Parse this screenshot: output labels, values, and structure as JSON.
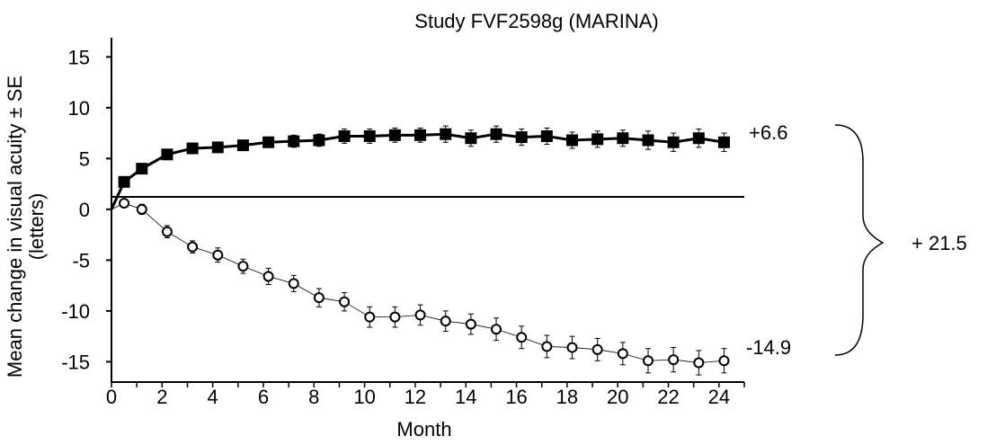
{
  "chart_data": {
    "type": "line",
    "title": "Study FVF2598g (MARINA)",
    "xlabel": "Month",
    "ylabel_line1": "Mean change in visual acuity ± SE",
    "ylabel_line2": "(letters)",
    "xlim": [
      0,
      25
    ],
    "ylim": [
      -17,
      16
    ],
    "xticks": [
      0,
      2,
      4,
      6,
      8,
      10,
      12,
      14,
      16,
      18,
      20,
      22,
      24
    ],
    "yticks": [
      15,
      10,
      5,
      0,
      -5,
      -10,
      -15
    ],
    "grid": false,
    "reference_line_y": 0,
    "series": [
      {
        "marker": "filled-square",
        "color": "#000000",
        "x": [
          0,
          0.5,
          1.2,
          2.2,
          3.2,
          4.2,
          5.2,
          6.2,
          7.2,
          8.2,
          9.2,
          10.2,
          11.2,
          12.2,
          13.2,
          14.2,
          15.2,
          16.2,
          17.2,
          18.2,
          19.2,
          20.2,
          21.2,
          22.2,
          23.2,
          24.2
        ],
        "y": [
          0,
          2.7,
          4.0,
          5.4,
          6.0,
          6.1,
          6.3,
          6.6,
          6.7,
          6.8,
          7.2,
          7.2,
          7.3,
          7.3,
          7.4,
          7.0,
          7.4,
          7.1,
          7.2,
          6.8,
          6.9,
          7.0,
          6.8,
          6.6,
          7.0,
          6.6
        ],
        "se": [
          0,
          0.4,
          0.4,
          0.5,
          0.5,
          0.5,
          0.5,
          0.5,
          0.6,
          0.6,
          0.7,
          0.7,
          0.7,
          0.7,
          0.8,
          0.8,
          0.8,
          0.8,
          0.8,
          0.8,
          0.8,
          0.8,
          0.9,
          0.9,
          0.9,
          0.9
        ]
      },
      {
        "marker": "open-circle",
        "color": "#000000",
        "x": [
          0,
          0.5,
          1.2,
          2.2,
          3.2,
          4.2,
          5.2,
          6.2,
          7.2,
          8.2,
          9.2,
          10.2,
          11.2,
          12.2,
          13.2,
          14.2,
          15.2,
          16.2,
          17.2,
          18.2,
          19.2,
          20.2,
          21.2,
          22.2,
          23.2,
          24.2
        ],
        "y": [
          0,
          0.6,
          0.0,
          -2.2,
          -3.7,
          -4.5,
          -5.6,
          -6.6,
          -7.3,
          -8.7,
          -9.1,
          -10.6,
          -10.6,
          -10.4,
          -11.0,
          -11.3,
          -11.8,
          -12.6,
          -13.5,
          -13.6,
          -13.8,
          -14.2,
          -14.9,
          -14.8,
          -15.1,
          -14.9
        ],
        "se": [
          0,
          0.4,
          0.5,
          0.6,
          0.6,
          0.7,
          0.7,
          0.8,
          0.8,
          0.9,
          0.9,
          1.0,
          1.0,
          1.0,
          1.0,
          1.0,
          1.1,
          1.1,
          1.1,
          1.1,
          1.1,
          1.1,
          1.2,
          1.2,
          1.2,
          1.2
        ]
      }
    ],
    "annotations": {
      "top_end_label": "+6.6",
      "bottom_end_label": "-14.9",
      "difference_label": "+ 21.5"
    }
  }
}
